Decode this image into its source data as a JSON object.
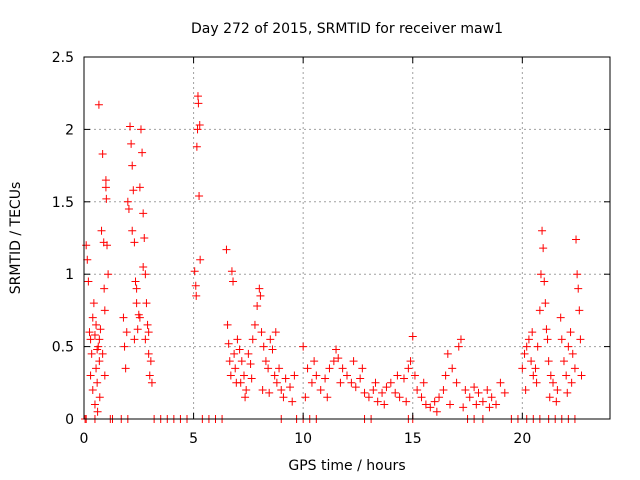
{
  "chart_data": {
    "type": "scatter",
    "title": "Day 272 of 2015, SRMTID for receiver maw1",
    "xlabel": "GPS time / hours",
    "ylabel": "SRMTID / TECUs",
    "xlim": [
      0,
      24
    ],
    "ylim": [
      0,
      2.5
    ],
    "xticks": [
      0,
      5,
      10,
      15,
      20
    ],
    "yticks": [
      0,
      0.5,
      1,
      1.5,
      2,
      2.5
    ],
    "xtick_labels": [
      "0",
      "5",
      "10",
      "15",
      "20"
    ],
    "ytick_labels": [
      "0",
      "0.5",
      "1",
      "1.5",
      "2",
      "2.5"
    ],
    "grid": true,
    "marker": "+",
    "color": "#ff0000",
    "series": [
      {
        "name": "maw1",
        "points": [
          [
            0.1,
            1.2
          ],
          [
            0.15,
            1.1
          ],
          [
            0.2,
            0.95
          ],
          [
            0.25,
            0.6
          ],
          [
            0.3,
            0.55
          ],
          [
            0.35,
            0.45
          ],
          [
            0.4,
            0.7
          ],
          [
            0.45,
            0.8
          ],
          [
            0.5,
            0.58
          ],
          [
            0.55,
            0.35
          ],
          [
            0.6,
            0.25
          ],
          [
            0.62,
            0.05
          ],
          [
            0.65,
            0.5
          ],
          [
            0.68,
            2.17
          ],
          [
            0.7,
            0.4
          ],
          [
            0.72,
            0.15
          ],
          [
            0.75,
            0.62
          ],
          [
            0.8,
            1.3
          ],
          [
            0.85,
            1.83
          ],
          [
            0.9,
            1.22
          ],
          [
            0.92,
            0.9
          ],
          [
            0.95,
            0.75
          ],
          [
            1.0,
            1.6
          ],
          [
            1.02,
            1.52
          ],
          [
            1.05,
            1.2
          ],
          [
            1.1,
            1.0
          ],
          [
            0.3,
            0.3
          ],
          [
            0.4,
            0.2
          ],
          [
            0.5,
            0.1
          ],
          [
            0.55,
            0.65
          ],
          [
            0.6,
            0.48
          ],
          [
            0.7,
            0.55
          ],
          [
            0.85,
            0.45
          ],
          [
            0.95,
            0.3
          ],
          [
            1.0,
            1.65
          ],
          [
            1.8,
            0.7
          ],
          [
            1.85,
            0.5
          ],
          [
            1.9,
            0.35
          ],
          [
            1.95,
            0.6
          ],
          [
            2.0,
            1.5
          ],
          [
            2.05,
            1.45
          ],
          [
            2.1,
            2.02
          ],
          [
            2.15,
            1.9
          ],
          [
            2.2,
            1.75
          ],
          [
            2.25,
            1.58
          ],
          [
            2.3,
            1.22
          ],
          [
            2.35,
            0.95
          ],
          [
            2.4,
            0.8
          ],
          [
            2.45,
            0.62
          ],
          [
            2.5,
            0.72
          ],
          [
            2.55,
            1.6
          ],
          [
            2.6,
            2.0
          ],
          [
            2.65,
            1.84
          ],
          [
            2.7,
            1.42
          ],
          [
            2.75,
            1.25
          ],
          [
            2.8,
            1.0
          ],
          [
            2.85,
            0.8
          ],
          [
            2.9,
            0.65
          ],
          [
            2.95,
            0.45
          ],
          [
            3.0,
            0.3
          ],
          [
            3.05,
            0.4
          ],
          [
            3.1,
            0.25
          ],
          [
            2.2,
            1.3
          ],
          [
            2.3,
            0.55
          ],
          [
            2.4,
            0.9
          ],
          [
            2.55,
            0.7
          ],
          [
            2.7,
            1.05
          ],
          [
            2.8,
            0.55
          ],
          [
            2.95,
            0.6
          ],
          [
            5.05,
            1.02
          ],
          [
            5.1,
            0.92
          ],
          [
            5.12,
            0.85
          ],
          [
            5.15,
            1.88
          ],
          [
            5.18,
            2.0
          ],
          [
            5.2,
            2.23
          ],
          [
            5.22,
            2.18
          ],
          [
            5.25,
            1.54
          ],
          [
            5.28,
            2.03
          ],
          [
            5.3,
            1.1
          ],
          [
            6.5,
            1.17
          ],
          [
            6.55,
            0.65
          ],
          [
            6.6,
            0.52
          ],
          [
            6.65,
            0.4
          ],
          [
            6.7,
            0.3
          ],
          [
            6.75,
            1.02
          ],
          [
            6.8,
            0.95
          ],
          [
            6.85,
            0.45
          ],
          [
            6.9,
            0.35
          ],
          [
            6.95,
            0.25
          ],
          [
            7.0,
            0.55
          ],
          [
            7.1,
            0.48
          ],
          [
            7.2,
            0.4
          ],
          [
            7.3,
            0.3
          ],
          [
            7.4,
            0.2
          ],
          [
            7.5,
            0.45
          ],
          [
            7.6,
            0.38
          ],
          [
            7.7,
            0.55
          ],
          [
            7.8,
            0.65
          ],
          [
            7.9,
            0.78
          ],
          [
            8.0,
            0.9
          ],
          [
            8.05,
            0.85
          ],
          [
            8.1,
            0.6
          ],
          [
            8.2,
            0.5
          ],
          [
            8.3,
            0.4
          ],
          [
            8.4,
            0.35
          ],
          [
            8.5,
            0.55
          ],
          [
            8.6,
            0.48
          ],
          [
            8.7,
            0.3
          ],
          [
            8.8,
            0.25
          ],
          [
            8.9,
            0.35
          ],
          [
            9.0,
            0.2
          ],
          [
            9.2,
            0.28
          ],
          [
            9.4,
            0.22
          ],
          [
            9.6,
            0.3
          ],
          [
            7.15,
            0.25
          ],
          [
            7.35,
            0.15
          ],
          [
            7.65,
            0.28
          ],
          [
            8.15,
            0.2
          ],
          [
            8.45,
            0.18
          ],
          [
            8.75,
            0.6
          ],
          [
            9.1,
            0.15
          ],
          [
            9.5,
            0.12
          ],
          [
            10.0,
            0.5
          ],
          [
            10.2,
            0.35
          ],
          [
            10.4,
            0.25
          ],
          [
            10.6,
            0.3
          ],
          [
            10.8,
            0.2
          ],
          [
            11.0,
            0.28
          ],
          [
            11.2,
            0.35
          ],
          [
            11.4,
            0.4
          ],
          [
            11.5,
            0.48
          ],
          [
            11.6,
            0.42
          ],
          [
            11.8,
            0.35
          ],
          [
            12.0,
            0.3
          ],
          [
            12.2,
            0.25
          ],
          [
            12.4,
            0.22
          ],
          [
            12.6,
            0.28
          ],
          [
            12.8,
            0.18
          ],
          [
            13.0,
            0.15
          ],
          [
            13.2,
            0.2
          ],
          [
            13.4,
            0.12
          ],
          [
            13.6,
            0.18
          ],
          [
            13.8,
            0.22
          ],
          [
            14.0,
            0.25
          ],
          [
            14.2,
            0.18
          ],
          [
            14.4,
            0.15
          ],
          [
            14.6,
            0.28
          ],
          [
            14.8,
            0.35
          ],
          [
            14.9,
            0.4
          ],
          [
            15.0,
            0.57
          ],
          [
            15.1,
            0.3
          ],
          [
            15.2,
            0.2
          ],
          [
            15.4,
            0.15
          ],
          [
            15.6,
            0.1
          ],
          [
            15.8,
            0.08
          ],
          [
            16.0,
            0.12
          ],
          [
            16.2,
            0.15
          ],
          [
            16.4,
            0.2
          ],
          [
            16.5,
            0.3
          ],
          [
            16.6,
            0.45
          ],
          [
            16.8,
            0.35
          ],
          [
            17.0,
            0.25
          ],
          [
            17.1,
            0.5
          ],
          [
            17.2,
            0.55
          ],
          [
            17.4,
            0.2
          ],
          [
            17.6,
            0.15
          ],
          [
            17.8,
            0.22
          ],
          [
            18.0,
            0.18
          ],
          [
            18.2,
            0.12
          ],
          [
            18.4,
            0.2
          ],
          [
            18.6,
            0.15
          ],
          [
            18.8,
            0.1
          ],
          [
            19.0,
            0.25
          ],
          [
            19.2,
            0.18
          ],
          [
            10.1,
            0.15
          ],
          [
            10.5,
            0.4
          ],
          [
            11.1,
            0.15
          ],
          [
            11.7,
            0.25
          ],
          [
            12.3,
            0.4
          ],
          [
            12.7,
            0.35
          ],
          [
            13.3,
            0.25
          ],
          [
            13.7,
            0.1
          ],
          [
            14.3,
            0.3
          ],
          [
            14.7,
            0.12
          ],
          [
            15.5,
            0.25
          ],
          [
            16.1,
            0.05
          ],
          [
            16.7,
            0.1
          ],
          [
            17.3,
            0.08
          ],
          [
            17.9,
            0.1
          ],
          [
            18.5,
            0.08
          ],
          [
            20.0,
            0.35
          ],
          [
            20.1,
            0.45
          ],
          [
            20.2,
            0.5
          ],
          [
            20.3,
            0.55
          ],
          [
            20.4,
            0.4
          ],
          [
            20.5,
            0.3
          ],
          [
            20.6,
            0.35
          ],
          [
            20.7,
            0.5
          ],
          [
            20.8,
            0.75
          ],
          [
            20.85,
            1.0
          ],
          [
            20.9,
            1.3
          ],
          [
            20.95,
            1.18
          ],
          [
            21.0,
            0.95
          ],
          [
            21.05,
            0.8
          ],
          [
            21.1,
            0.62
          ],
          [
            21.15,
            0.55
          ],
          [
            21.2,
            0.4
          ],
          [
            21.3,
            0.3
          ],
          [
            21.4,
            0.25
          ],
          [
            21.6,
            0.2
          ],
          [
            21.8,
            0.55
          ],
          [
            21.9,
            0.4
          ],
          [
            22.0,
            0.3
          ],
          [
            22.1,
            0.5
          ],
          [
            22.2,
            0.6
          ],
          [
            22.3,
            0.45
          ],
          [
            22.4,
            0.35
          ],
          [
            22.45,
            1.24
          ],
          [
            22.5,
            1.0
          ],
          [
            22.55,
            0.9
          ],
          [
            22.6,
            0.75
          ],
          [
            22.65,
            0.55
          ],
          [
            22.7,
            0.3
          ],
          [
            20.15,
            0.2
          ],
          [
            20.45,
            0.6
          ],
          [
            20.65,
            0.25
          ],
          [
            21.25,
            0.15
          ],
          [
            21.55,
            0.12
          ],
          [
            21.75,
            0.7
          ],
          [
            22.05,
            0.18
          ],
          [
            22.25,
            0.25
          ]
        ],
        "zero_points": [
          0.05,
          0.1,
          0.5,
          1.2,
          1.3,
          1.7,
          2.0,
          3.2,
          3.5,
          3.8,
          4.1,
          4.4,
          4.7,
          5.4,
          5.7,
          6.0,
          6.3,
          9.0,
          9.7,
          10.0,
          10.3,
          10.6,
          12.8,
          13.1,
          14.8,
          15.0,
          17.5,
          17.8,
          18.2,
          19.5,
          19.8,
          20.2,
          20.5,
          20.8,
          21.2,
          21.5,
          21.8,
          22.1,
          22.4
        ]
      }
    ]
  }
}
